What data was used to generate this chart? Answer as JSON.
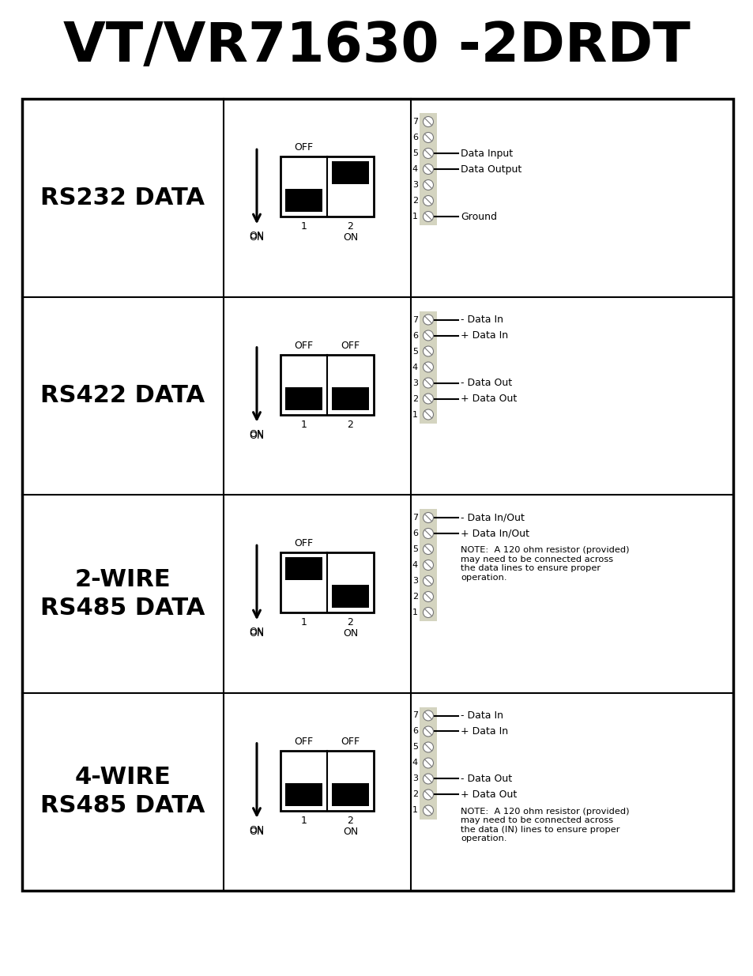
{
  "title": "VT/VR71630 -2DRDT",
  "bg_color": "#ffffff",
  "pin_block_color": "#d4d4c0",
  "rows": [
    {
      "label": "RS232 DATA",
      "label_lines": 1,
      "sw1_pos": "bottom",
      "sw2_pos": "top",
      "off1": "OFF",
      "off2": "",
      "on_left": "ON",
      "on_right": "ON",
      "connections": {
        "5": "Data Input",
        "4": "Data Output",
        "1": "Ground"
      },
      "note": ""
    },
    {
      "label": "RS422 DATA",
      "label_lines": 1,
      "sw1_pos": "bottom",
      "sw2_pos": "bottom",
      "off1": "OFF",
      "off2": "OFF",
      "on_left": "ON",
      "on_right": "",
      "connections": {
        "7": "- Data In",
        "6": "+ Data In",
        "3": "- Data Out",
        "2": "+ Data Out"
      },
      "note": ""
    },
    {
      "label": "2-WIRE\nRS485 DATA",
      "label_lines": 2,
      "sw1_pos": "top",
      "sw2_pos": "bottom",
      "off1": "OFF",
      "off2": "",
      "on_left": "ON",
      "on_right": "ON",
      "connections": {
        "7": "- Data In/Out",
        "6": "+ Data In/Out"
      },
      "note": "NOTE:  A 120 ohm resistor (provided)\nmay need to be connected across\nthe data lines to ensure proper\noperation."
    },
    {
      "label": "4-WIRE\nRS485 DATA",
      "label_lines": 2,
      "sw1_pos": "bottom",
      "sw2_pos": "bottom",
      "off1": "OFF",
      "off2": "OFF",
      "on_left": "ON",
      "on_right": "ON",
      "connections": {
        "7": "- Data In",
        "6": "+ Data In",
        "3": "- Data Out",
        "2": "+ Data Out"
      },
      "note": "NOTE:  A 120 ohm resistor (provided)\nmay need to be connected across\nthe data (IN) lines to ensure proper\noperation."
    }
  ]
}
